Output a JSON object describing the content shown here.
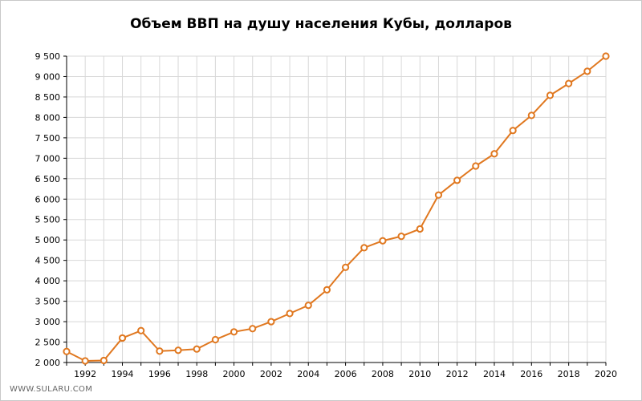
{
  "chart_data": {
    "type": "line",
    "title": "Объем ВВП на душу населения Кубы,  долларов",
    "xlabel": "",
    "ylabel": "",
    "x": [
      1991,
      1992,
      1993,
      1994,
      1995,
      1996,
      1997,
      1998,
      1999,
      2000,
      2001,
      2002,
      2003,
      2004,
      2005,
      2006,
      2007,
      2008,
      2009,
      2010,
      2011,
      2012,
      2013,
      2014,
      2015,
      2016,
      2017,
      2018,
      2019,
      2020
    ],
    "series": [
      {
        "values": [
          2270,
          2040,
          2050,
          2600,
          2780,
          2280,
          2300,
          2330,
          2560,
          2750,
          2830,
          3000,
          3200,
          3400,
          3780,
          4330,
          4810,
          4980,
          5090,
          5270,
          6100,
          6460,
          6810,
          7110,
          7680,
          8050,
          8540,
          8830,
          9130,
          9500
        ],
        "color": "#e07820"
      }
    ],
    "xlim": [
      1991,
      2020
    ],
    "ylim": [
      2000,
      9500
    ],
    "x_ticks": [
      "1992",
      "1994",
      "1996",
      "1998",
      "2000",
      "2002",
      "2004",
      "2006",
      "2008",
      "2010",
      "2012",
      "2014",
      "2016",
      "2018",
      "2020"
    ],
    "y_ticks": [
      "2 000",
      "2 500",
      "3 000",
      "3 500",
      "4 000",
      "4 500",
      "5 000",
      "5 500",
      "6 000",
      "6 500",
      "7 000",
      "7 500",
      "8 000",
      "8 500",
      "9 000",
      "9 500"
    ],
    "grid": true,
    "legend": "none",
    "grid_color": "#d8d8d8",
    "axis_color": "#000000"
  },
  "watermark": "WWW.SULARU.COM"
}
